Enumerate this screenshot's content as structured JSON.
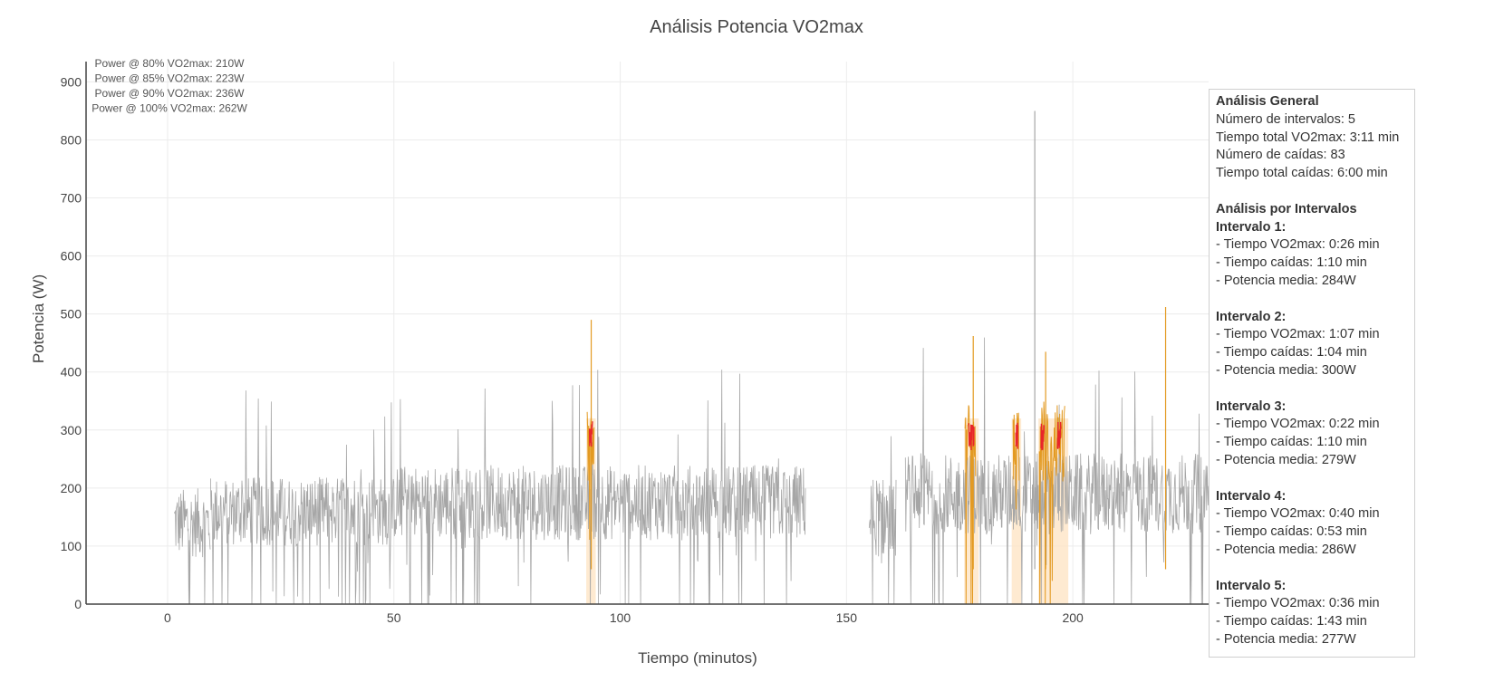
{
  "chart_data": {
    "type": "line",
    "title": "Análisis Potencia VO2max",
    "xlabel": "Tiempo (minutos)",
    "ylabel": "Potencia (W)",
    "xlim": [
      -18,
      230
    ],
    "ylim": [
      0,
      935
    ],
    "x_ticks": [
      0,
      50,
      100,
      150,
      200
    ],
    "y_ticks": [
      0,
      100,
      200,
      300,
      400,
      500,
      600,
      700,
      800,
      900
    ],
    "grid": true,
    "series_colors": {
      "power": "#a6a6a6",
      "vo2max": "#e39a22",
      "drops": "#e8262a",
      "shade": "#fde3c2"
    },
    "power_thresholds": [
      "Power @ 80% VO2max: 210W",
      "Power @ 85% VO2max: 223W",
      "Power @ 90% VO2max: 236W",
      "Power @ 100% VO2max: 262W"
    ],
    "segments": [
      {
        "x_start": 1.5,
        "x_end": 9.5,
        "mean": 140,
        "spread": 60,
        "spike_max": 342
      },
      {
        "x_start": 9.5,
        "x_end": 50,
        "mean": 160,
        "spread": 60,
        "spike_max": 370
      },
      {
        "x_start": 50,
        "x_end": 90,
        "mean": 175,
        "spread": 65,
        "spike_max": 409
      },
      {
        "x_start": 90,
        "x_end": 141,
        "mean": 175,
        "spread": 65,
        "spike_max": 407
      },
      {
        "x_start": 155,
        "x_end": 161,
        "mean": 150,
        "spread": 70,
        "spike_max": 335
      },
      {
        "x_start": 163,
        "x_end": 230,
        "mean": 190,
        "spread": 70,
        "spike_max": 512
      }
    ],
    "peaks": [
      {
        "x": 93.6,
        "y": 490
      },
      {
        "x": 178,
        "y": 462
      },
      {
        "x": 191.6,
        "y": 850
      },
      {
        "x": 194,
        "y": 435
      },
      {
        "x": 220.5,
        "y": 512
      }
    ],
    "vo2max_intervals": [
      {
        "x_start": 92.7,
        "x_end": 94.3
      },
      {
        "x_start": 176.2,
        "x_end": 178.6
      },
      {
        "x_start": 186.8,
        "x_end": 188.2
      },
      {
        "x_start": 192.6,
        "x_end": 198.3
      }
    ],
    "shaded_regions": [
      {
        "x_start": 92.5,
        "x_end": 94.6
      },
      {
        "x_start": 176,
        "x_end": 179.2
      },
      {
        "x_start": 186.5,
        "x_end": 188.6
      },
      {
        "x_start": 192.4,
        "x_end": 199
      }
    ],
    "drop_bursts": [
      {
        "x_start": 93.2,
        "x_end": 93.9
      },
      {
        "x_start": 177,
        "x_end": 178.2
      },
      {
        "x_start": 187.4,
        "x_end": 187.9
      },
      {
        "x_start": 193,
        "x_end": 193.7
      },
      {
        "x_start": 196.6,
        "x_end": 197.4
      }
    ]
  },
  "summary_box": {
    "general_title": "Análisis General",
    "general_lines": [
      "Número de intervalos: 5",
      "Tiempo total VO2max: 3:11 min",
      "Número de caídas: 83",
      "Tiempo total caídas: 6:00 min"
    ],
    "by_interval_title": "Análisis por Intervalos",
    "intervals": [
      {
        "title": "Intervalo 1:",
        "lines": [
          "- Tiempo VO2max: 0:26 min",
          "- Tiempo caídas: 1:10 min",
          "- Potencia media: 284W"
        ]
      },
      {
        "title": "Intervalo 2:",
        "lines": [
          "- Tiempo VO2max: 1:07 min",
          "- Tiempo caídas: 1:04 min",
          "- Potencia media: 300W"
        ]
      },
      {
        "title": "Intervalo 3:",
        "lines": [
          "- Tiempo VO2max: 0:22 min",
          "- Tiempo caídas: 1:10 min",
          "- Potencia media: 279W"
        ]
      },
      {
        "title": "Intervalo 4:",
        "lines": [
          "- Tiempo VO2max: 0:40 min",
          "- Tiempo caídas: 0:53 min",
          "- Potencia media: 286W"
        ]
      },
      {
        "title": "Intervalo 5:",
        "lines": [
          "- Tiempo VO2max: 0:36 min",
          "- Tiempo caídas: 1:43 min",
          "- Potencia media: 277W"
        ]
      }
    ]
  }
}
